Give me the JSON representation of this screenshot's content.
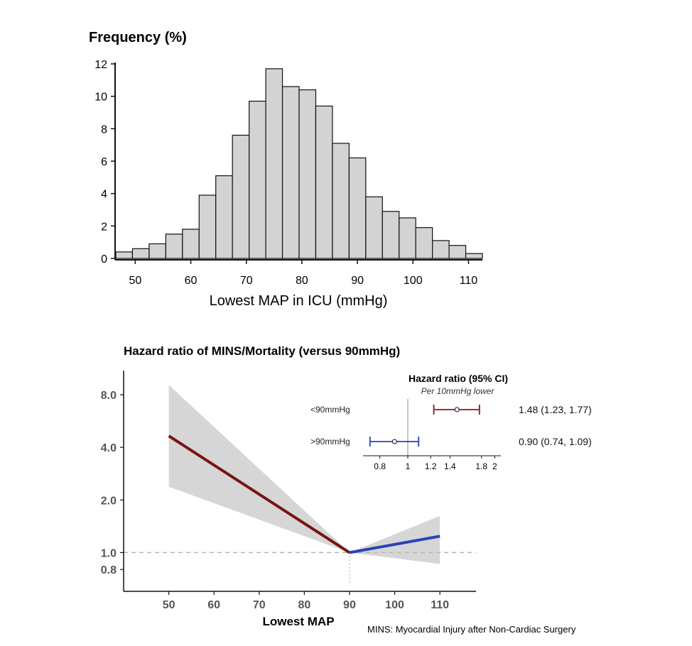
{
  "chart_data": [
    {
      "type": "bar",
      "ylabel": "Frequency (%)",
      "xlabel": "Lowest MAP in ICU (mmHg)",
      "xlim": [
        46.5,
        112.5
      ],
      "ylim": [
        0,
        12
      ],
      "xticks": [
        "50",
        "60",
        "70",
        "80",
        "90",
        "100",
        "110"
      ],
      "yticks": [
        "0",
        "2",
        "4",
        "6",
        "8",
        "10",
        "12"
      ],
      "bin_width": 3,
      "bins_start": [
        46.5,
        49.5,
        52.5,
        55.5,
        58.5,
        61.5,
        64.5,
        67.5,
        70.5,
        73.5,
        76.5,
        79.5,
        82.5,
        85.5,
        88.5,
        91.5,
        94.5,
        97.5,
        100.5,
        103.5,
        106.5,
        109.5
      ],
      "values": [
        0.4,
        0.6,
        0.9,
        1.5,
        1.8,
        3.9,
        5.1,
        7.6,
        9.7,
        11.7,
        10.6,
        10.4,
        9.4,
        7.1,
        6.2,
        3.8,
        2.9,
        2.5,
        1.9,
        1.1,
        0.8,
        0.3
      ]
    },
    {
      "type": "line",
      "title": "Hazard ratio of MINS/Mortality (versus 90mmHg)",
      "xlabel": "Lowest MAP",
      "xlim": [
        40,
        118
      ],
      "ylim": [
        0.6,
        11
      ],
      "yscale": "log",
      "xticks": [
        "50",
        "60",
        "70",
        "80",
        "90",
        "100",
        "110"
      ],
      "yticks": [
        {
          "v": 0.8,
          "label": "0.8"
        },
        {
          "v": 1.0,
          "label": "1.0"
        },
        {
          "v": 2.0,
          "label": "2.0"
        },
        {
          "v": 4.0,
          "label": "4.0"
        },
        {
          "v": 8.0,
          "label": "8.0"
        }
      ],
      "reference_y": 1.0,
      "reference_x": 90,
      "series": [
        {
          "color": "#7a1414",
          "x": [
            50,
            90
          ],
          "y": [
            4.65,
            1.0
          ],
          "ci_lower": [
            2.38,
            1.0
          ],
          "ci_upper": [
            9.1,
            1.0
          ]
        },
        {
          "color": "#2845b5",
          "x": [
            90,
            110
          ],
          "y": [
            1.0,
            1.24
          ],
          "ci_lower": [
            1.0,
            0.86
          ],
          "ci_upper": [
            1.0,
            1.62
          ]
        }
      ]
    },
    {
      "type": "forest",
      "title": "Hazard ratio (95% CI)",
      "subtitle": "Per 10mmHg lower",
      "xlim": [
        0.7,
        2.1
      ],
      "xticks": [
        "0.8",
        "1",
        "1.2",
        "1.4",
        "1.8",
        "2"
      ],
      "rows": [
        {
          "label": "<90mmHg",
          "hr": 1.48,
          "lo": 1.23,
          "hi": 1.77,
          "text": "1.48 (1.23, 1.77)",
          "color": "#8b1a1a"
        },
        {
          "label": ">90mmHg",
          "hr": 0.9,
          "lo": 0.74,
          "hi": 1.09,
          "text": "0.90 (0.74, 1.09)",
          "color": "#2845b5"
        }
      ]
    }
  ],
  "footnote": "MINS: Myocardial Injury after Non-Cardiac Surgery"
}
